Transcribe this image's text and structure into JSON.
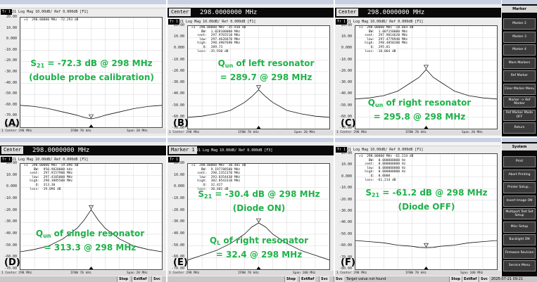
{
  "entry_bar": {
    "label": "Center",
    "value": "298.0000000 MHz"
  },
  "entry_bar_marker": {
    "label": "Marker 1",
    "trace_text": "S21 Log Mag 10.00dB/ Ref 0.000dB [F3]"
  },
  "trace_title": "S21 Log Mag 10.00dB/ Ref 0.000dB [F1]",
  "trace_tag": "Tr 1",
  "y_ticks": [
    "20.00",
    "10.00",
    "0.000",
    "-10.00",
    "-20.00",
    "-30.00",
    "-40.00",
    "-50.00",
    "-60.00",
    "-70.00",
    "-80.00"
  ],
  "footer": {
    "start": "1 Center 298 MHz",
    "ifbw": "IFBW 70 kHz",
    "span": "Span 20 MHz",
    "span2": "Span 100 MHz"
  },
  "status": {
    "stop": "Stop",
    "extref": "ExtRef",
    "svc": "Svc",
    "message": "Target value not found",
    "datetime": "2025-07-21 09:21"
  },
  "panels": {
    "A": {
      "label": "(A)",
      "readout": ">1  298.00000 MHz -72.293 dB",
      "annot": [
        "S21 = -72.3 dB @ 298 MHz",
        "(double probe calibration)"
      ]
    },
    "B": {
      "label": "(B)",
      "readout": ">1  298.00000 MHz -35.930 dB\n     BW:  1.028100000 MHz\n   cent:  297.9765510 MHz\n    low:  297.4626670 MHz\n   high:  298.4907690 MHz\n      Q:  289.73\n   loss: -35.930 dB",
      "annot": [
        "Qun of left resonator",
        "= 289.7 @ 298 MHz"
      ]
    },
    "C": {
      "label": "(C)",
      "readout": ">1  298.00000 MHz -18.064 dB\n     BW:  1.007150000 MHz\n   cent:  297.9814620 MHz\n    low:  297.4778940 MHz\n   high:  298.4850280 MHz\n      Q:  295.81\n   loss: -18.064 dB",
      "annot": [
        "Qun of right resonator",
        "= 295.8 @ 298 MHz"
      ]
    },
    "D": {
      "label": "(D)",
      "readout": ">1  298.00000 MHz -19.096 dB\n     BW:  950.9820000 kHz\n   cent:  297.9157900 MHz\n    low:  297.4105000 MHz\n   high:  298.3885500 MHz\n      Q:  313.30\n   loss: -19.096 dB",
      "annot": [
        "Qun of single resonator",
        "= 313.3 @ 298 MHz"
      ]
    },
    "E": {
      "label": "(E)",
      "readout": ">1  298.00000 MHz -30.401 dB\n     BW:  9.197788500 MHz\n   cent:  298.2352370 MHz\n    low:  293.8354430 MHz\n   high:  302.8543310 MHz\n      Q:  32.427\n   loss: -30.401 dB",
      "annot": [
        "S21 = -30.4 dB @ 298 MHz",
        "(Diode ON)",
        "QL of right resonator",
        "= 32.4 @ 298 MHz"
      ]
    },
    "F": {
      "label": "(F)",
      "readout": ">1  298.00000 MHz -61.214 dB\n     BW:  0.000000000 Hz\n   cent:  0.000000000 Hz\n    low:  0.000000000 Hz\n   high:  0.000000000 Hz\n      Q:  0.0000\n   loss: -61.214 dB",
      "annot": [
        "S21 = -61.2 dB @ 298 MHz",
        "(Diode OFF)"
      ]
    }
  },
  "softkeys_top": {
    "title": "Marker",
    "items": [
      "Marker 2",
      "Marker 3",
      "Marker 4",
      "More Markers",
      "Ref Marker",
      "Clear Marker Menu",
      "Marker -> Ref Marker",
      "Ref Marker Mode OFF",
      "Return"
    ]
  },
  "softkeys_bottom": {
    "title": "System",
    "items": [
      "Print",
      "Abort Printing",
      "Printer Setup...",
      "Invert Image ON",
      "Multiport Test Set Setup",
      "Misc Setup",
      "Backlight ON",
      "Firmware Revision",
      "Service Menu"
    ]
  },
  "chart_data": [
    {
      "type": "line",
      "panel": "A",
      "ylim": [
        -80,
        20
      ],
      "x": [
        288,
        290,
        292,
        294,
        296,
        297,
        298,
        299,
        300,
        302,
        304,
        306,
        308
      ],
      "values": [
        -60,
        -61,
        -63,
        -66,
        -69,
        -71,
        -72.3,
        -71,
        -69,
        -66,
        -63,
        -61,
        -60
      ]
    },
    {
      "type": "line",
      "panel": "B",
      "ylim": [
        -70,
        20
      ],
      "x": [
        288,
        290,
        292,
        294,
        296,
        297,
        298,
        299,
        300,
        302,
        304,
        306,
        308
      ],
      "values": [
        -60,
        -59,
        -57,
        -54,
        -47,
        -42,
        -35.9,
        -42,
        -47,
        -54,
        -57,
        -59,
        -60
      ]
    },
    {
      "type": "line",
      "panel": "C",
      "ylim": [
        -70,
        20
      ],
      "x": [
        288,
        290,
        292,
        294,
        296,
        297,
        298,
        299,
        300,
        302,
        304,
        306,
        308
      ],
      "values": [
        -44,
        -43,
        -41,
        -37,
        -29,
        -25,
        -18.1,
        -25,
        -29,
        -37,
        -41,
        -43,
        -44
      ]
    },
    {
      "type": "line",
      "panel": "D",
      "ylim": [
        -70,
        20
      ],
      "x": [
        288,
        290,
        292,
        294,
        296,
        297,
        298,
        299,
        300,
        302,
        304,
        306,
        308
      ],
      "values": [
        -55,
        -53,
        -50,
        -44,
        -35,
        -28,
        -19.1,
        -28,
        -35,
        -44,
        -50,
        -53,
        -55
      ]
    },
    {
      "type": "line",
      "panel": "E",
      "ylim": [
        -70,
        20
      ],
      "x": [
        248,
        258,
        268,
        278,
        288,
        293,
        298,
        303,
        308,
        318,
        328,
        338,
        348
      ],
      "values": [
        -62,
        -58,
        -54,
        -48,
        -40,
        -34,
        -30.4,
        -34,
        -40,
        -48,
        -54,
        -58,
        -62
      ]
    },
    {
      "type": "line",
      "panel": "F",
      "ylim": [
        -80,
        20
      ],
      "x": [
        248,
        258,
        268,
        278,
        288,
        293,
        298,
        303,
        308,
        318,
        328,
        338,
        348
      ],
      "values": [
        -55,
        -56,
        -57,
        -59,
        -60,
        -61,
        -61.2,
        -61,
        -60,
        -59,
        -57,
        -56,
        -55
      ]
    }
  ]
}
